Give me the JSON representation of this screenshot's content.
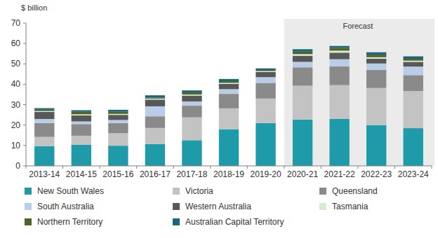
{
  "chart_data": {
    "type": "bar",
    "stacked": true,
    "y_label": "$ billion",
    "categories": [
      "2013-14",
      "2014-15",
      "2015-16",
      "2016-17",
      "2017-18",
      "2018-19",
      "2019-20",
      "2020-21",
      "2021-22",
      "2022-23",
      "2023-24"
    ],
    "series": [
      {
        "name": "New South Wales",
        "color": "#1f9aa8",
        "values": [
          9.7,
          10.3,
          9.9,
          10.7,
          12.6,
          18,
          21,
          22.7,
          23,
          20,
          18.5
        ]
      },
      {
        "name": "Victoria",
        "color": "#c3c3c3",
        "values": [
          4.5,
          4.5,
          6.1,
          7.9,
          11.2,
          10.2,
          12,
          16.6,
          16.6,
          18.2,
          18.2
        ]
      },
      {
        "name": "Queensland",
        "color": "#8a8a8a",
        "values": [
          6.8,
          5.7,
          5,
          5.7,
          5.7,
          7.1,
          7.7,
          9,
          9.2,
          8.8,
          7.8
        ]
      },
      {
        "name": "South Australia",
        "color": "#b9cde8",
        "values": [
          2,
          1.3,
          1.5,
          4.9,
          2.1,
          2.3,
          2.8,
          2.7,
          3.5,
          3.2,
          4.2
        ]
      },
      {
        "name": "Western Australia",
        "color": "#585858",
        "values": [
          3.5,
          3,
          2.5,
          3.3,
          2.9,
          2.6,
          2.5,
          3,
          3.2,
          2.3,
          2.3
        ]
      },
      {
        "name": "Tasmania",
        "color": "#d9ead3",
        "values": [
          0.4,
          0.5,
          0.5,
          0.5,
          0.5,
          0.5,
          0.5,
          0.8,
          1,
          0.8,
          0.6
        ]
      },
      {
        "name": "Northern Territory",
        "color": "#4f6228",
        "values": [
          0.6,
          1.2,
          1,
          0.5,
          1,
          0.8,
          0.5,
          1.2,
          1.3,
          1.2,
          0.9
        ]
      },
      {
        "name": "Australian Capital Territory",
        "color": "#1b6678",
        "values": [
          0.8,
          0.8,
          1,
          1.1,
          1,
          1.1,
          0.8,
          1.2,
          1,
          1.2,
          1.2
        ]
      }
    ],
    "annotations": [
      {
        "text": "Forecast",
        "x": "2020-21"
      }
    ],
    "ylim": [
      0,
      70
    ],
    "yticks": [
      0,
      10,
      20,
      30,
      40,
      50,
      60,
      70
    ],
    "grid": false,
    "legend": "bottom"
  }
}
